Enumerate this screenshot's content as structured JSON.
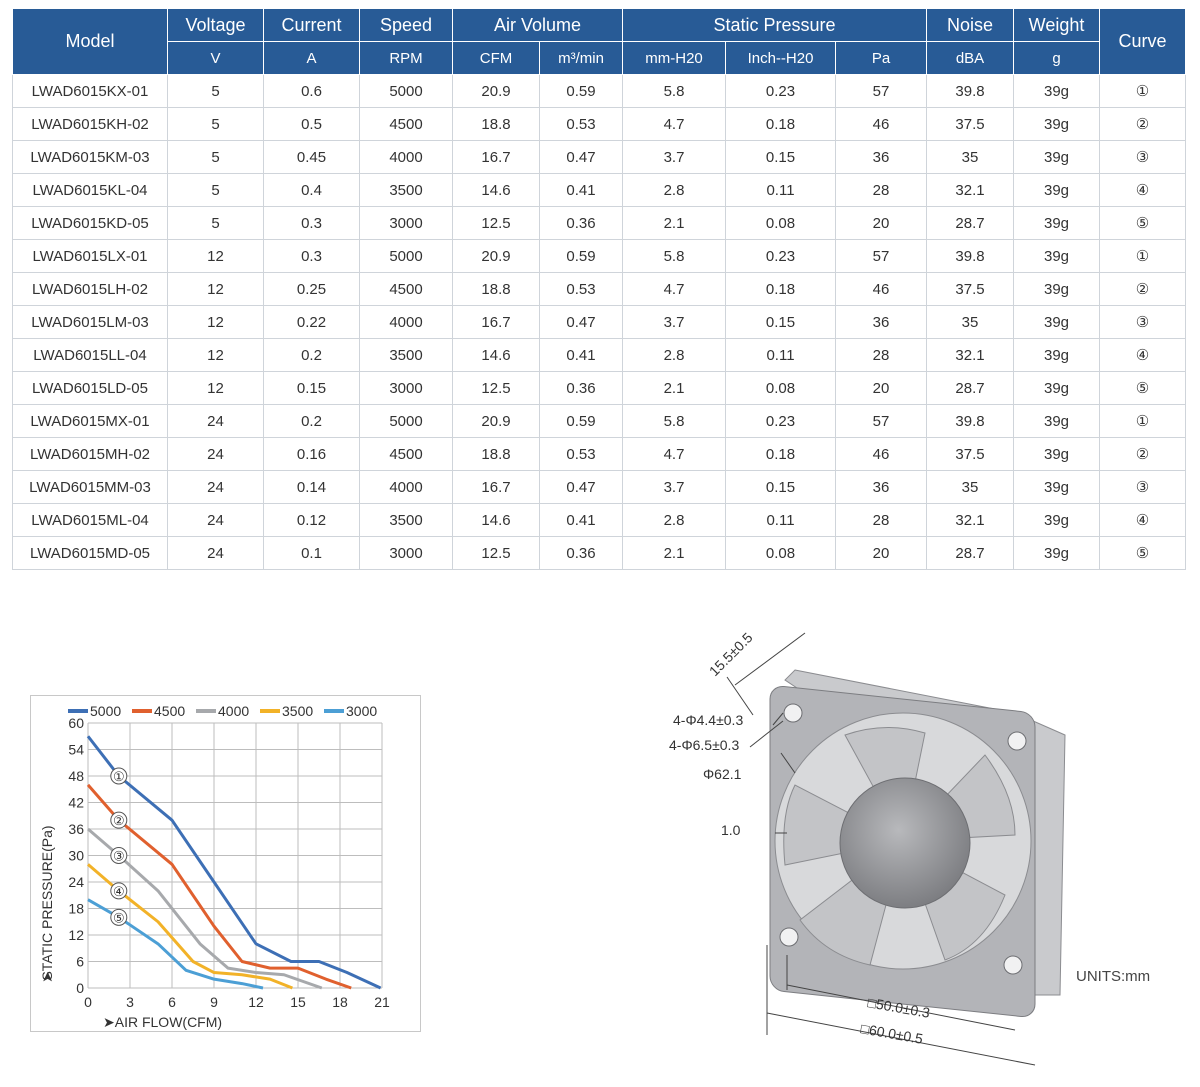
{
  "table": {
    "headers": {
      "model": "Model",
      "voltage": "Voltage",
      "current": "Current",
      "speed": "Speed",
      "air_volume": "Air Volume",
      "static_pressure": "Static Pressure",
      "noise": "Noise",
      "weight": "Weight",
      "curve": "Curve"
    },
    "units": [
      "V",
      "A",
      "RPM",
      "CFM",
      "m³/min",
      "mm-H20",
      "Inch--H20",
      "Pa",
      "dBA",
      "g"
    ],
    "rows": [
      [
        "LWAD6015KX-01",
        "5",
        "0.6",
        "5000",
        "20.9",
        "0.59",
        "5.8",
        "0.23",
        "57",
        "39.8",
        "39g",
        "①"
      ],
      [
        "LWAD6015KH-02",
        "5",
        "0.5",
        "4500",
        "18.8",
        "0.53",
        "4.7",
        "0.18",
        "46",
        "37.5",
        "39g",
        "②"
      ],
      [
        "LWAD6015KM-03",
        "5",
        "0.45",
        "4000",
        "16.7",
        "0.47",
        "3.7",
        "0.15",
        "36",
        "35",
        "39g",
        "③"
      ],
      [
        "LWAD6015KL-04",
        "5",
        "0.4",
        "3500",
        "14.6",
        "0.41",
        "2.8",
        "0.11",
        "28",
        "32.1",
        "39g",
        "④"
      ],
      [
        "LWAD6015KD-05",
        "5",
        "0.3",
        "3000",
        "12.5",
        "0.36",
        "2.1",
        "0.08",
        "20",
        "28.7",
        "39g",
        "⑤"
      ],
      [
        "LWAD6015LX-01",
        "12",
        "0.3",
        "5000",
        "20.9",
        "0.59",
        "5.8",
        "0.23",
        "57",
        "39.8",
        "39g",
        "①"
      ],
      [
        "LWAD6015LH-02",
        "12",
        "0.25",
        "4500",
        "18.8",
        "0.53",
        "4.7",
        "0.18",
        "46",
        "37.5",
        "39g",
        "②"
      ],
      [
        "LWAD6015LM-03",
        "12",
        "0.22",
        "4000",
        "16.7",
        "0.47",
        "3.7",
        "0.15",
        "36",
        "35",
        "39g",
        "③"
      ],
      [
        "LWAD6015LL-04",
        "12",
        "0.2",
        "3500",
        "14.6",
        "0.41",
        "2.8",
        "0.11",
        "28",
        "32.1",
        "39g",
        "④"
      ],
      [
        "LWAD6015LD-05",
        "12",
        "0.15",
        "3000",
        "12.5",
        "0.36",
        "2.1",
        "0.08",
        "20",
        "28.7",
        "39g",
        "⑤"
      ],
      [
        "LWAD6015MX-01",
        "24",
        "0.2",
        "5000",
        "20.9",
        "0.59",
        "5.8",
        "0.23",
        "57",
        "39.8",
        "39g",
        "①"
      ],
      [
        "LWAD6015MH-02",
        "24",
        "0.16",
        "4500",
        "18.8",
        "0.53",
        "4.7",
        "0.18",
        "46",
        "37.5",
        "39g",
        "②"
      ],
      [
        "LWAD6015MM-03",
        "24",
        "0.14",
        "4000",
        "16.7",
        "0.47",
        "3.7",
        "0.15",
        "36",
        "35",
        "39g",
        "③"
      ],
      [
        "LWAD6015ML-04",
        "24",
        "0.12",
        "3500",
        "14.6",
        "0.41",
        "2.8",
        "0.11",
        "28",
        "32.1",
        "39g",
        "④"
      ],
      [
        "LWAD6015MD-05",
        "24",
        "0.1",
        "3000",
        "12.5",
        "0.36",
        "2.1",
        "0.08",
        "20",
        "28.7",
        "39g",
        "⑤"
      ]
    ]
  },
  "chart_data": {
    "type": "line",
    "xlabel": "AIR FLOW(CFM)",
    "ylabel": "STATIC PRESSURE(Pa)",
    "xlim": [
      0,
      21
    ],
    "ylim": [
      0,
      60
    ],
    "xticks": [
      0,
      3,
      6,
      9,
      12,
      15,
      18,
      21
    ],
    "yticks": [
      0,
      6,
      12,
      18,
      24,
      30,
      36,
      42,
      48,
      54,
      60
    ],
    "grid": true,
    "legend_position": "top",
    "series": [
      {
        "name": "5000",
        "color": "#3d6fb5",
        "marker": "①",
        "x": [
          0,
          2.2,
          6,
          9,
          12,
          14.5,
          16.5,
          18.5,
          20.9
        ],
        "y": [
          57,
          48,
          38,
          24,
          10,
          6,
          6,
          3.5,
          0
        ]
      },
      {
        "name": "4500",
        "color": "#e0602e",
        "marker": "②",
        "x": [
          0,
          2.2,
          6,
          9,
          11,
          13,
          15,
          17,
          18.8
        ],
        "y": [
          46,
          38,
          28,
          14,
          6,
          4.5,
          4.5,
          2,
          0
        ]
      },
      {
        "name": "4000",
        "color": "#a7a9ac",
        "marker": "③",
        "x": [
          0,
          2.2,
          5,
          8,
          10,
          12,
          14,
          16.7
        ],
        "y": [
          36,
          30,
          22,
          10,
          4.5,
          3.5,
          3,
          0
        ]
      },
      {
        "name": "3500",
        "color": "#f2b228",
        "marker": "④",
        "x": [
          0,
          2.2,
          5,
          7.5,
          9,
          11,
          13,
          14.6
        ],
        "y": [
          28,
          22,
          15,
          6,
          3.5,
          3,
          2,
          0
        ]
      },
      {
        "name": "3000",
        "color": "#4c9fd5",
        "marker": "⑤",
        "x": [
          0,
          2.2,
          5,
          7,
          9,
          11,
          12.5
        ],
        "y": [
          20,
          16,
          10,
          4,
          2,
          1,
          0
        ]
      }
    ]
  },
  "drawing": {
    "dim_depth": "15.5±0.5",
    "dim_hole_small": "4-Φ4.4±0.3",
    "dim_hole_large": "4-Φ6.5±0.3",
    "dim_diameter": "Φ62.1",
    "dim_thickness": "1.0",
    "dim_hole_pitch": "□50.0±0.3",
    "dim_frame": "□60.0±0.5",
    "units": "UNITS:mm"
  }
}
